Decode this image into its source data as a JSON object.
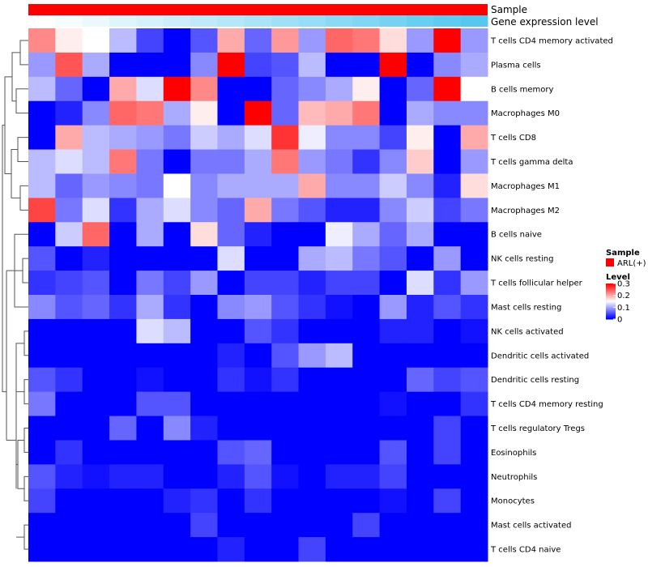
{
  "chart_data": {
    "type": "heatmap",
    "annotation_tracks": [
      "Sample",
      "Gene expression level"
    ],
    "rows": [
      "T cells CD4 memory activated",
      "Plasma cells",
      "B cells memory",
      "Macrophages M0",
      "T cells CD8",
      "T cells gamma delta",
      "Macrophages M1",
      "Macrophages M2",
      "B cells naive",
      "NK cells resting",
      "T cells follicular helper",
      "Mast cells resting",
      "NK cells activated",
      "Dendritic cells activated",
      "Dendritic cells resting",
      "T cells CD4 memory resting",
      "T cells regulatory  Tregs",
      "Eosinophils",
      "Neutrophils",
      "Monocytes",
      "Mast cells activated",
      "T cells CD4 naive"
    ],
    "n_columns": 17,
    "values": [
      [
        0.22,
        0.16,
        0.15,
        0.11,
        0.04,
        0.0,
        0.05,
        0.2,
        0.06,
        0.21,
        0.09,
        0.24,
        0.23,
        0.17,
        0.09,
        0.3,
        0.09
      ],
      [
        0.09,
        0.25,
        0.1,
        0.0,
        0.0,
        0.0,
        0.08,
        0.3,
        0.04,
        0.05,
        0.11,
        0.0,
        0.0,
        0.3,
        0.0,
        0.08,
        0.1
      ],
      [
        0.11,
        0.06,
        0.0,
        0.2,
        0.13,
        0.3,
        0.22,
        0.0,
        0.0,
        0.06,
        0.08,
        0.1,
        0.16,
        0.0,
        0.06,
        0.3,
        0.15
      ],
      [
        0.0,
        0.02,
        0.08,
        0.24,
        0.23,
        0.1,
        0.16,
        0.0,
        0.3,
        0.06,
        0.19,
        0.2,
        0.23,
        0.0,
        0.1,
        0.08,
        0.08
      ],
      [
        0.0,
        0.2,
        0.11,
        0.1,
        0.09,
        0.07,
        0.12,
        0.1,
        0.13,
        0.27,
        0.14,
        0.08,
        0.08,
        0.04,
        0.16,
        0.0,
        0.2
      ],
      [
        0.11,
        0.13,
        0.11,
        0.23,
        0.07,
        0.0,
        0.07,
        0.07,
        0.1,
        0.23,
        0.09,
        0.07,
        0.03,
        0.08,
        0.18,
        0.0,
        0.09
      ],
      [
        0.11,
        0.06,
        0.09,
        0.08,
        0.07,
        0.15,
        0.08,
        0.1,
        0.1,
        0.1,
        0.2,
        0.08,
        0.08,
        0.12,
        0.08,
        0.02,
        0.17
      ],
      [
        0.26,
        0.07,
        0.13,
        0.03,
        0.1,
        0.13,
        0.08,
        0.06,
        0.2,
        0.07,
        0.05,
        0.02,
        0.02,
        0.08,
        0.12,
        0.04,
        0.07
      ],
      [
        0.0,
        0.12,
        0.24,
        0.0,
        0.1,
        0.0,
        0.17,
        0.06,
        0.02,
        0.0,
        0.0,
        0.14,
        0.1,
        0.06,
        0.1,
        0.0,
        0.0
      ],
      [
        0.05,
        0.0,
        0.02,
        0.0,
        0.0,
        0.0,
        0.0,
        0.13,
        0.0,
        0.0,
        0.1,
        0.11,
        0.07,
        0.05,
        0.0,
        0.09,
        0.0
      ],
      [
        0.03,
        0.04,
        0.05,
        0.0,
        0.07,
        0.04,
        0.09,
        0.0,
        0.04,
        0.04,
        0.02,
        0.04,
        0.04,
        0.0,
        0.13,
        0.03,
        0.09
      ],
      [
        0.08,
        0.05,
        0.06,
        0.03,
        0.1,
        0.03,
        0.0,
        0.08,
        0.09,
        0.05,
        0.03,
        0.01,
        0.0,
        0.09,
        0.02,
        0.05,
        0.03
      ],
      [
        0.0,
        0.0,
        0.0,
        0.0,
        0.13,
        0.11,
        0.0,
        0.0,
        0.05,
        0.03,
        0.0,
        0.0,
        0.0,
        0.02,
        0.02,
        0.0,
        0.01
      ],
      [
        0.0,
        0.0,
        0.0,
        0.0,
        0.0,
        0.0,
        0.0,
        0.02,
        0.0,
        0.05,
        0.09,
        0.11,
        0.0,
        0.0,
        0.0,
        0.0,
        0.0
      ],
      [
        0.05,
        0.03,
        0.0,
        0.0,
        0.01,
        0.0,
        0.0,
        0.03,
        0.01,
        0.03,
        0.0,
        0.0,
        0.0,
        0.0,
        0.06,
        0.04,
        0.05
      ],
      [
        0.07,
        0.0,
        0.0,
        0.0,
        0.05,
        0.05,
        0.0,
        0.0,
        0.0,
        0.0,
        0.0,
        0.0,
        0.0,
        0.01,
        0.0,
        0.0,
        0.03
      ],
      [
        0.0,
        0.0,
        0.0,
        0.06,
        0.0,
        0.08,
        0.02,
        0.0,
        0.0,
        0.0,
        0.0,
        0.0,
        0.0,
        0.0,
        0.0,
        0.04,
        0.0
      ],
      [
        0.0,
        0.03,
        0.0,
        0.0,
        0.0,
        0.0,
        0.0,
        0.05,
        0.06,
        0.0,
        0.0,
        0.0,
        0.0,
        0.05,
        0.0,
        0.04,
        0.0
      ],
      [
        0.05,
        0.02,
        0.01,
        0.02,
        0.02,
        0.0,
        0.0,
        0.02,
        0.05,
        0.01,
        0.0,
        0.02,
        0.02,
        0.04,
        0.0,
        0.0,
        0.0
      ],
      [
        0.04,
        0.0,
        0.0,
        0.0,
        0.0,
        0.02,
        0.03,
        0.0,
        0.03,
        0.0,
        0.0,
        0.0,
        0.0,
        0.01,
        0.0,
        0.04,
        0.0
      ],
      [
        0.0,
        0.0,
        0.0,
        0.0,
        0.0,
        0.0,
        0.04,
        0.0,
        0.0,
        0.0,
        0.0,
        0.0,
        0.04,
        0.0,
        0.0,
        0.0,
        0.0
      ],
      [
        0.0,
        0.0,
        0.0,
        0.0,
        0.0,
        0.0,
        0.0,
        0.02,
        0.0,
        0.0,
        0.04,
        0.0,
        0.0,
        0.0,
        0.0,
        0.0,
        0.0
      ]
    ],
    "expression_level_track": [
      0.0,
      0.06,
      0.12,
      0.19,
      0.25,
      0.31,
      0.38,
      0.44,
      0.5,
      0.56,
      0.62,
      0.69,
      0.75,
      0.81,
      0.88,
      0.94,
      1.0
    ],
    "color_scale": {
      "low": "#0000ff",
      "mid": "#ffffff",
      "high": "#ff0000",
      "min": 0,
      "mid_value": 0.15,
      "max": 0.3
    },
    "legend": {
      "sample_title": "Sample",
      "sample_entry": "ARL(+)",
      "sample_color": "#ff0000",
      "level_title": "Level",
      "level_ticks": [
        "0.3",
        "0.2",
        "0.1",
        "0"
      ],
      "level_tick_values": [
        0.3,
        0.2,
        0.1,
        0
      ]
    }
  }
}
